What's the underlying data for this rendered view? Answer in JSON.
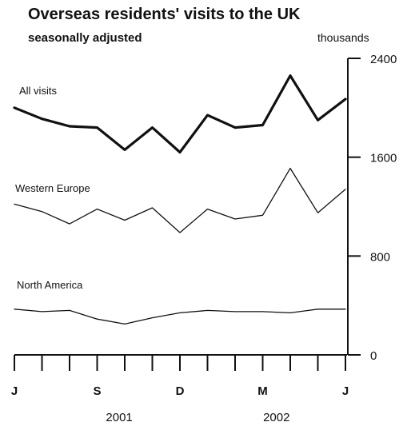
{
  "chart_data": {
    "type": "line",
    "title": "Overseas residents' visits to the UK",
    "subtitle": "seasonally adjusted",
    "ylabel": "thousands",
    "ylim": [
      0,
      2400
    ],
    "yticks": [
      "2400",
      "1600",
      "800",
      "0"
    ],
    "y_axis_side": "right",
    "x_tick_labels": [
      "J",
      "S",
      "D",
      "M",
      "J"
    ],
    "x_tick_label_months": [
      0,
      3,
      6,
      9,
      12
    ],
    "year_labels": [
      {
        "label": "2001",
        "center_month": 3.8
      },
      {
        "label": "2002",
        "center_month": 9.5
      }
    ],
    "x_months": [
      0,
      1,
      2,
      3,
      4,
      5,
      6,
      7,
      8,
      9,
      10,
      11,
      12
    ],
    "grid": false,
    "legend": "inline labels",
    "series": [
      {
        "name": "All visits",
        "line": "thick",
        "values": [
          2000,
          1910,
          1850,
          1840,
          1660,
          1840,
          1640,
          1940,
          1840,
          1860,
          2260,
          1900,
          2070
        ]
      },
      {
        "name": "Western Europe",
        "line": "thin",
        "values": [
          1220,
          1160,
          1060,
          1180,
          1090,
          1190,
          990,
          1180,
          1100,
          1130,
          1510,
          1150,
          1340
        ]
      },
      {
        "name": "North America",
        "line": "thin",
        "values": [
          370,
          350,
          360,
          290,
          250,
          300,
          340,
          360,
          350,
          350,
          340,
          370,
          370
        ]
      }
    ]
  }
}
